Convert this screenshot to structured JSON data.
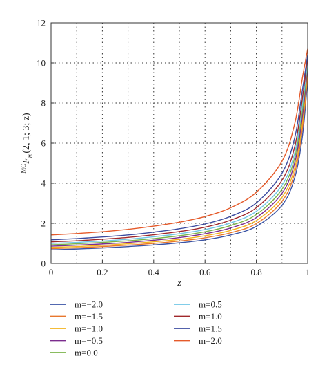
{
  "chart_data": {
    "type": "line",
    "ylabel_main": "F",
    "ylabel_sup": "MC",
    "ylabel_sub": "m",
    "ylabel_args": "(2, 1; 3; z)",
    "xlabel": "z",
    "xlim": [
      0,
      1
    ],
    "ylim": [
      0,
      12
    ],
    "xticks": [
      "0",
      "0.2",
      "0.4",
      "0.6",
      "0.8",
      "1"
    ],
    "yticks": [
      "0",
      "2",
      "4",
      "6",
      "8",
      "10",
      "12"
    ],
    "grid": true,
    "legend_position": "below",
    "x": [
      0,
      0.1,
      0.2,
      0.3,
      0.4,
      0.5,
      0.6,
      0.7,
      0.8,
      0.9,
      0.95,
      0.98,
      1.0
    ],
    "series": [
      {
        "name": "m=−2.0",
        "color": "#3a53a4",
        "values": [
          0.68,
          0.72,
          0.77,
          0.84,
          0.92,
          1.03,
          1.18,
          1.42,
          1.85,
          2.9,
          4.3,
          6.4,
          9.2
        ]
      },
      {
        "name": "m=−1.5",
        "color": "#e8772e",
        "values": [
          0.74,
          0.78,
          0.84,
          0.91,
          1.0,
          1.12,
          1.28,
          1.53,
          1.99,
          3.1,
          4.55,
          6.8,
          9.4
        ]
      },
      {
        "name": "m=−1.0",
        "color": "#f2b21c",
        "values": [
          0.8,
          0.84,
          0.9,
          0.98,
          1.08,
          1.2,
          1.38,
          1.65,
          2.14,
          3.3,
          4.8,
          7.1,
          9.6
        ]
      },
      {
        "name": "m=−0.5",
        "color": "#7b2d8e",
        "values": [
          0.86,
          0.91,
          0.97,
          1.05,
          1.16,
          1.29,
          1.48,
          1.77,
          2.29,
          3.5,
          5.05,
          7.4,
          9.8
        ]
      },
      {
        "name": "m=0.0",
        "color": "#7ab24a",
        "values": [
          0.93,
          0.98,
          1.05,
          1.13,
          1.24,
          1.38,
          1.58,
          1.89,
          2.44,
          3.7,
          5.3,
          7.7,
          10.0
        ]
      },
      {
        "name": "m=0.5",
        "color": "#6fc6e6",
        "values": [
          1.0,
          1.05,
          1.12,
          1.21,
          1.33,
          1.48,
          1.69,
          2.02,
          2.6,
          3.9,
          5.55,
          8.0,
          10.1
        ]
      },
      {
        "name": "m=1.0",
        "color": "#a0282b",
        "values": [
          1.08,
          1.13,
          1.21,
          1.3,
          1.43,
          1.59,
          1.81,
          2.16,
          2.78,
          4.15,
          5.85,
          8.3,
          10.3
        ]
      },
      {
        "name": "m=1.5",
        "color": "#3b4ba0",
        "values": [
          1.18,
          1.24,
          1.32,
          1.42,
          1.56,
          1.73,
          1.97,
          2.35,
          3.02,
          4.5,
          6.3,
          8.7,
          10.4
        ]
      },
      {
        "name": "m=2.0",
        "color": "#e55a2a",
        "values": [
          1.42,
          1.49,
          1.58,
          1.7,
          1.86,
          2.06,
          2.34,
          2.78,
          3.55,
          5.1,
          7.0,
          9.3,
          10.7
        ]
      }
    ]
  }
}
